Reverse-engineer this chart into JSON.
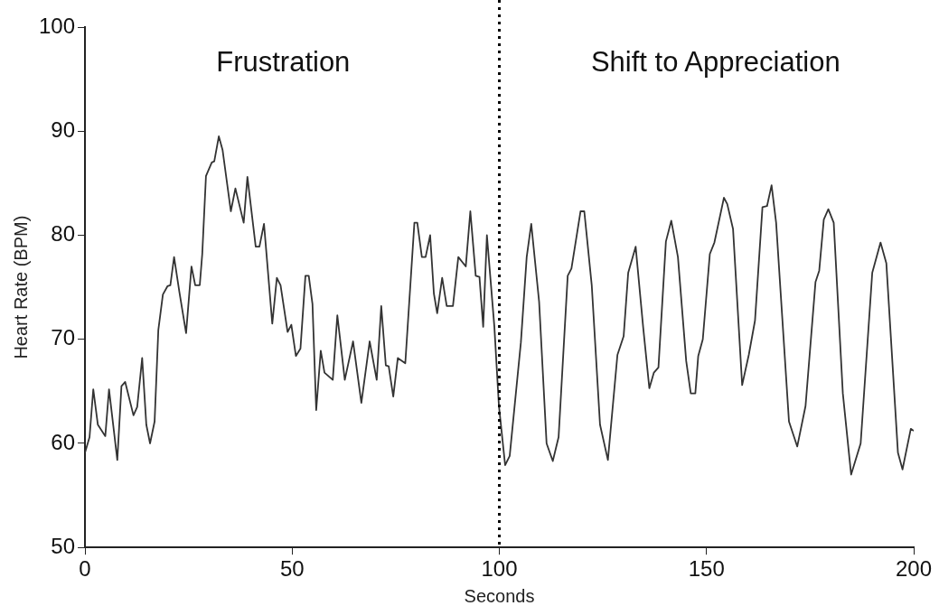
{
  "chart_data": {
    "type": "line",
    "xlabel": "Seconds",
    "ylabel": "Heart Rate (BPM)",
    "annotations": [
      "Frustration",
      "Shift to Appreciation"
    ],
    "ref_lines": [
      {
        "axis": "x",
        "value": 100,
        "color": "#000000",
        "line_style": "dotted"
      }
    ],
    "xlim": [
      0,
      200
    ],
    "xticks": [
      0,
      50,
      100,
      150,
      200
    ],
    "ylim": [
      50,
      100
    ],
    "yticks": [
      50,
      60,
      70,
      80,
      90,
      100
    ],
    "grid": false,
    "legend": false,
    "marker": "none",
    "line_style": "solid",
    "series": [
      {
        "color": "#333333",
        "x": [
          0,
          1.1,
          2.0,
          3.1,
          4.9,
          5.8,
          7.8,
          8.8,
          9.7,
          11.7,
          12.6,
          13.8,
          14.8,
          15.7,
          16.8,
          17.7,
          18.8,
          19.9,
          20.6,
          21.5,
          22.8,
          24.4,
          25.7,
          26.6,
          27.7,
          28.3,
          29.2,
          30.6,
          31.2,
          32.3,
          33.2,
          35.2,
          36.3,
          38.3,
          39.2,
          41.2,
          42.1,
          43.2,
          45.2,
          46.3,
          47.2,
          48.9,
          49.8,
          50.9,
          52.0,
          53.2,
          54.0,
          54.9,
          55.8,
          56.9,
          57.8,
          59.8,
          60.9,
          62.7,
          64.7,
          66.7,
          68.7,
          70.4,
          71.5,
          72.6,
          73.3,
          74.4,
          75.5,
          77.3,
          79.5,
          80.2,
          81.3,
          82.2,
          83.3,
          84.2,
          85.0,
          86.2,
          87.3,
          88.8,
          90.1,
          91.9,
          93.0,
          94.3,
          95.2,
          96.1,
          97.0,
          98.8,
          99.9,
          101.4,
          102.5,
          105.2,
          106.6,
          107.7,
          109.6,
          111.4,
          112.9,
          114.3,
          116.5,
          117.4,
          119.6,
          120.5,
          122.3,
          124.3,
          126.2,
          128.5,
          130.0,
          131.1,
          132.9,
          134.7,
          136.2,
          137.3,
          138.4,
          140.2,
          141.5,
          143.1,
          145.1,
          146.2,
          147.3,
          148.0,
          149.1,
          150.8,
          151.9,
          154.2,
          155.0,
          156.4,
          158.6,
          160.2,
          161.7,
          163.5,
          164.6,
          165.7,
          166.8,
          169.9,
          171.9,
          173.9,
          176.3,
          177.2,
          178.3,
          179.4,
          180.7,
          182.9,
          184.9,
          187.2,
          190.0,
          192.0,
          193.4,
          196.2,
          197.3,
          199.3,
          200
        ],
        "values": [
          59.1,
          60.6,
          65.2,
          61.8,
          60.7,
          65.2,
          58.4,
          65.5,
          65.9,
          62.7,
          63.5,
          68.2,
          61.8,
          60.0,
          62.1,
          70.9,
          74.3,
          75.1,
          75.2,
          77.9,
          74.5,
          70.6,
          77.0,
          75.2,
          75.2,
          78.2,
          85.7,
          87.0,
          87.1,
          89.5,
          88.2,
          82.3,
          84.5,
          81.2,
          85.6,
          78.9,
          78.9,
          81.1,
          71.5,
          75.9,
          75.2,
          70.7,
          71.4,
          68.4,
          69.1,
          76.1,
          76.1,
          73.4,
          63.2,
          68.9,
          66.8,
          66.1,
          72.3,
          66.1,
          69.8,
          63.9,
          69.8,
          66.1,
          73.2,
          67.5,
          67.4,
          64.5,
          68.2,
          67.7,
          81.2,
          81.2,
          77.9,
          77.9,
          80.0,
          74.4,
          72.5,
          75.9,
          73.2,
          73.2,
          77.9,
          77.0,
          82.3,
          76.1,
          76.0,
          71.2,
          80.0,
          71.2,
          63.6,
          57.9,
          58.8,
          69.7,
          77.9,
          81.1,
          73.6,
          60.0,
          58.3,
          60.6,
          76.1,
          76.8,
          82.3,
          82.3,
          75.2,
          61.8,
          58.4,
          68.5,
          70.3,
          76.4,
          78.9,
          71.2,
          65.3,
          66.8,
          67.3,
          79.4,
          81.4,
          77.9,
          67.9,
          64.8,
          64.8,
          68.4,
          70.0,
          78.2,
          79.3,
          83.6,
          83.0,
          80.6,
          65.6,
          68.5,
          71.8,
          82.7,
          82.8,
          84.8,
          81.2,
          62.1,
          59.7,
          63.6,
          75.5,
          76.6,
          81.5,
          82.5,
          81.2,
          64.8,
          57.0,
          60.0,
          76.4,
          79.3,
          77.3,
          59.1,
          57.5,
          61.4,
          61.2
        ]
      }
    ]
  }
}
